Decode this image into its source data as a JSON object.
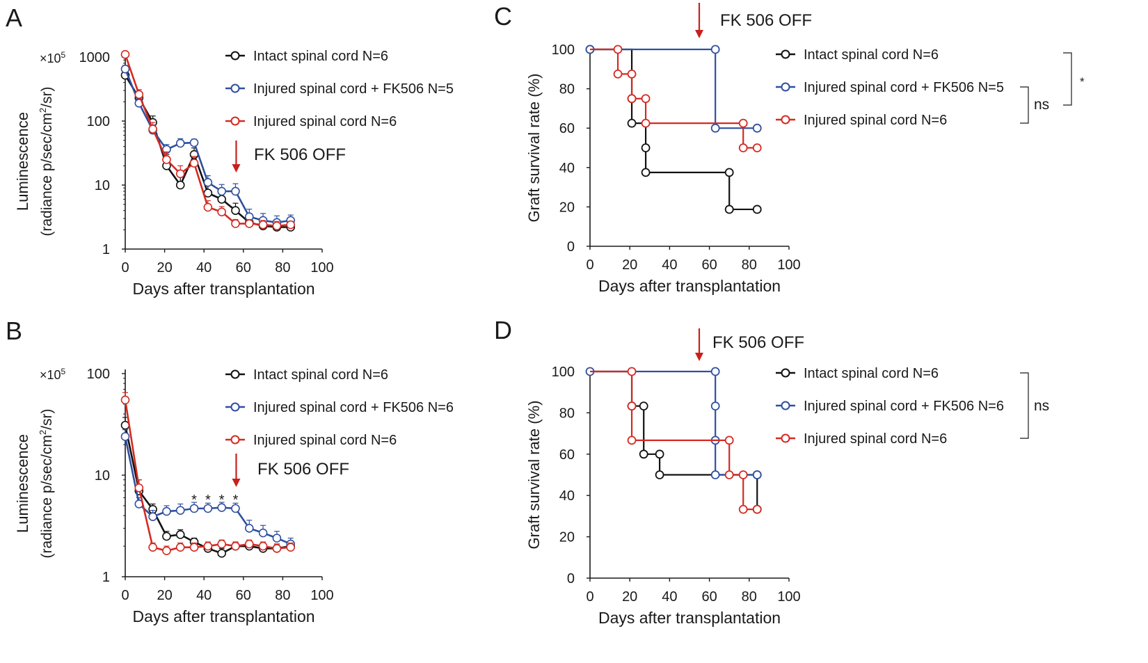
{
  "colors": {
    "intact": "#111111",
    "fk506": "#2f4f9f",
    "injured": "#d42a22",
    "arrow": "#c8201c",
    "axis": "#1a1a1a",
    "star": "#555555"
  },
  "arrow_label": "FK 506 OFF",
  "chart_data": [
    {
      "panel": "A",
      "type": "line",
      "yscale": "log",
      "title": "",
      "xlabel": "Days after transplantation",
      "ylabel": "Luminescence",
      "ylabel2": "(radiance p/sec/cm²/sr)",
      "ylabel2_main": "(radiance p/sec/cm",
      "ylabel2_sup": "2",
      "ylabel2_tail": "/sr)",
      "multiplier_base": "×10",
      "multiplier_exp": "5",
      "xlim": [
        0,
        100
      ],
      "ylim": [
        1,
        1000
      ],
      "xticks": [
        "0",
        "20",
        "40",
        "60",
        "80",
        "100"
      ],
      "yticks": [
        "1",
        "10",
        "100",
        "1000"
      ],
      "arrow_x": 56,
      "series": [
        {
          "name": "Intact spinal cord N=6",
          "key": "intact",
          "x": [
            0,
            7,
            14,
            21,
            28,
            35,
            42,
            49,
            56,
            63,
            70,
            77,
            84
          ],
          "y": [
            520,
            230,
            95,
            20,
            10,
            30,
            7.5,
            6,
            4,
            2.6,
            2.3,
            2.2,
            2.2
          ],
          "err": [
            80,
            40,
            25,
            10,
            4.5,
            8,
            2.5,
            2,
            1.2,
            0.5,
            0.4,
            0.4,
            0.4
          ]
        },
        {
          "name": "Injured spinal cord + FK506 N=5",
          "key": "fk506",
          "x": [
            0,
            7,
            14,
            21,
            28,
            35,
            42,
            49,
            56,
            63,
            70,
            77,
            84
          ],
          "y": [
            650,
            190,
            72,
            36,
            45,
            46,
            11,
            8,
            8,
            3.2,
            2.8,
            2.6,
            2.8
          ],
          "err": [
            90,
            30,
            15,
            7,
            8,
            6,
            3,
            2.2,
            2.5,
            1,
            0.8,
            0.7,
            0.6
          ]
        },
        {
          "name": "Injured spinal cord N=6",
          "key": "injured",
          "x": [
            0,
            7,
            14,
            21,
            28,
            35,
            42,
            49,
            56,
            63,
            70,
            77,
            84
          ],
          "y": [
            1100,
            260,
            75,
            25,
            15,
            22,
            4.5,
            3.8,
            2.5,
            2.5,
            2.4,
            2.3,
            2.4
          ],
          "err": [
            100,
            50,
            20,
            8,
            5,
            6,
            1.2,
            0.8,
            0.4,
            0.4,
            0.4,
            0.4,
            0.3
          ]
        }
      ],
      "stars": []
    },
    {
      "panel": "B",
      "type": "line",
      "yscale": "log",
      "title": "",
      "xlabel": "Days after transplantation",
      "ylabel": "Luminescence",
      "ylabel2": "(radiance p/sec/cm²/sr)",
      "ylabel2_main": "(radiance p/sec/cm",
      "ylabel2_sup": "2",
      "ylabel2_tail": "/sr)",
      "multiplier_base": "×10",
      "multiplier_exp": "5",
      "xlim": [
        0,
        100
      ],
      "ylim": [
        1,
        100
      ],
      "xticks": [
        "0",
        "20",
        "40",
        "60",
        "80",
        "100"
      ],
      "yticks": [
        "1",
        "10",
        "100"
      ],
      "arrow_x": 56,
      "series": [
        {
          "name": "Intact spinal cord N=6",
          "key": "intact",
          "x": [
            0,
            7,
            14,
            21,
            28,
            35,
            42,
            49,
            56,
            63,
            70,
            77,
            84
          ],
          "y": [
            31,
            7,
            4.6,
            2.5,
            2.6,
            2.2,
            1.9,
            1.7,
            2.0,
            2.0,
            1.9,
            1.9,
            2.0
          ],
          "err": [
            6,
            2,
            0.6,
            0.3,
            0.3,
            0.2,
            0.2,
            0.2,
            0.2,
            0.2,
            0.2,
            0.2,
            0.2
          ]
        },
        {
          "name": "Injured spinal cord + FK506 N=6",
          "key": "fk506",
          "x": [
            0,
            7,
            14,
            21,
            28,
            35,
            42,
            49,
            56,
            63,
            70,
            77,
            84
          ],
          "y": [
            24,
            5.2,
            3.9,
            4.4,
            4.5,
            4.7,
            4.7,
            4.8,
            4.7,
            3.0,
            2.7,
            2.4,
            2.1
          ],
          "err": [
            4,
            0.8,
            0.6,
            0.6,
            0.7,
            0.7,
            0.6,
            0.6,
            0.6,
            0.6,
            0.5,
            0.4,
            0.3
          ]
        },
        {
          "name": "Injured spinal cord N=6",
          "key": "injured",
          "x": [
            0,
            7,
            14,
            21,
            28,
            35,
            42,
            49,
            56,
            63,
            70,
            77,
            84
          ],
          "y": [
            55,
            7.5,
            1.95,
            1.8,
            1.95,
            1.95,
            2.0,
            2.1,
            2.0,
            2.1,
            2.0,
            1.9,
            1.95
          ],
          "err": [
            10,
            1.5,
            0.2,
            0.2,
            0.2,
            0.2,
            0.2,
            0.2,
            0.2,
            0.2,
            0.2,
            0.2,
            0.2
          ]
        }
      ],
      "stars": [
        {
          "x": 35,
          "label": "*"
        },
        {
          "x": 42,
          "label": "*"
        },
        {
          "x": 49,
          "label": "*"
        },
        {
          "x": 56,
          "label": "*"
        }
      ]
    },
    {
      "panel": "C",
      "type": "line",
      "subtype": "survival-step",
      "title": "",
      "xlabel": "Days after transplantation",
      "ylabel": "Graft survival rate (%)",
      "xlim": [
        0,
        100
      ],
      "ylim": [
        0,
        100
      ],
      "xticks": [
        "0",
        "20",
        "40",
        "60",
        "80",
        "100"
      ],
      "yticks": [
        "0",
        "20",
        "40",
        "60",
        "80",
        "100"
      ],
      "arrow_x": 56,
      "series": [
        {
          "name": "Intact spinal cord N=6",
          "key": "intact",
          "steps": [
            [
              0,
              100
            ],
            [
              21,
              100
            ],
            [
              21,
              75
            ],
            [
              21,
              62.5
            ],
            [
              28,
              62.5
            ],
            [
              28,
              50
            ],
            [
              28,
              37.5
            ],
            [
              70,
              37.5
            ],
            [
              70,
              18.75
            ],
            [
              84,
              18.75
            ]
          ],
          "markers": [
            [
              0,
              100
            ],
            [
              21,
              75
            ],
            [
              21,
              62.5
            ],
            [
              28,
              50
            ],
            [
              28,
              37.5
            ],
            [
              70,
              37.5
            ],
            [
              70,
              18.75
            ],
            [
              84,
              18.75
            ]
          ]
        },
        {
          "name": "Injured spinal cord + FK506 N=5",
          "key": "fk506",
          "steps": [
            [
              0,
              100
            ],
            [
              63,
              100
            ],
            [
              63,
              60
            ],
            [
              84,
              60
            ]
          ],
          "markers": [
            [
              0,
              100
            ],
            [
              63,
              100
            ],
            [
              63,
              60
            ],
            [
              84,
              60
            ]
          ]
        },
        {
          "name": "Injured spinal cord N=6",
          "key": "injured",
          "steps": [
            [
              0,
              100
            ],
            [
              14,
              100
            ],
            [
              14,
              87.5
            ],
            [
              21,
              87.5
            ],
            [
              21,
              75
            ],
            [
              28,
              75
            ],
            [
              28,
              62.5
            ],
            [
              77,
              62.5
            ],
            [
              77,
              50
            ],
            [
              84,
              50
            ]
          ],
          "markers": [
            [
              14,
              100
            ],
            [
              14,
              87.5
            ],
            [
              21,
              87.5
            ],
            [
              21,
              75
            ],
            [
              28,
              75
            ],
            [
              28,
              62.5
            ],
            [
              77,
              62.5
            ],
            [
              77,
              50
            ],
            [
              84,
              50
            ]
          ]
        }
      ],
      "annotations": {
        "inner": "ns",
        "outer": "*"
      }
    },
    {
      "panel": "D",
      "type": "line",
      "subtype": "survival-step",
      "title": "",
      "xlabel": "Days after transplantation",
      "ylabel": "Graft survival rate (%)",
      "xlim": [
        0,
        100
      ],
      "ylim": [
        0,
        100
      ],
      "xticks": [
        "0",
        "20",
        "40",
        "60",
        "80",
        "100"
      ],
      "yticks": [
        "0",
        "20",
        "40",
        "60",
        "80",
        "100"
      ],
      "arrow_x": 55,
      "series": [
        {
          "name": "Intact spinal cord N=6",
          "key": "intact",
          "steps": [
            [
              0,
              100
            ],
            [
              21,
              100
            ],
            [
              21,
              83.3
            ],
            [
              27,
              83.3
            ],
            [
              27,
              60
            ],
            [
              35,
              60
            ],
            [
              35,
              50
            ],
            [
              84,
              50
            ],
            [
              84,
              33.3
            ]
          ],
          "markers": [
            [
              21,
              83.3
            ],
            [
              27,
              83.3
            ],
            [
              27,
              60
            ],
            [
              35,
              60
            ],
            [
              35,
              50
            ],
            [
              84,
              50
            ],
            [
              84,
              33.3
            ]
          ]
        },
        {
          "name": "Injured spinal cord + FK506 N=6",
          "key": "fk506",
          "steps": [
            [
              0,
              100
            ],
            [
              63,
              100
            ],
            [
              63,
              83.3
            ],
            [
              63,
              66.7
            ],
            [
              63,
              50
            ],
            [
              84,
              50
            ]
          ],
          "markers": [
            [
              0,
              100
            ],
            [
              63,
              100
            ],
            [
              63,
              83.3
            ],
            [
              63,
              66.7
            ],
            [
              63,
              50
            ],
            [
              84,
              50
            ]
          ]
        },
        {
          "name": "Injured spinal cord N=6",
          "key": "injured",
          "steps": [
            [
              0,
              100
            ],
            [
              21,
              100
            ],
            [
              21,
              83.3
            ],
            [
              21,
              66.7
            ],
            [
              70,
              66.7
            ],
            [
              70,
              50
            ],
            [
              77,
              50
            ],
            [
              77,
              33.3
            ],
            [
              84,
              33.3
            ]
          ],
          "markers": [
            [
              21,
              100
            ],
            [
              21,
              83.3
            ],
            [
              21,
              66.7
            ],
            [
              70,
              66.7
            ],
            [
              70,
              50
            ],
            [
              77,
              50
            ],
            [
              77,
              33.3
            ],
            [
              84,
              33.3
            ]
          ]
        }
      ],
      "annotations": {
        "inner": "ns"
      }
    }
  ]
}
